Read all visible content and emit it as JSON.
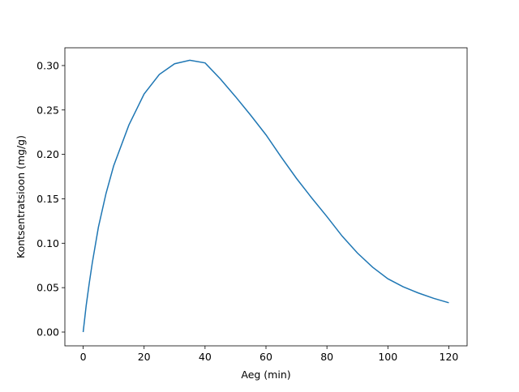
{
  "chart_data": {
    "type": "line",
    "x_label": "Aeg (min)",
    "y_label": "Kontsentratsioon (mg/g)",
    "x": [
      0,
      1,
      2,
      3,
      5,
      7.5,
      10,
      15,
      20,
      25,
      30,
      35,
      40,
      45,
      50,
      55,
      60,
      65,
      70,
      75,
      80,
      85,
      90,
      95,
      100,
      105,
      110,
      115,
      120
    ],
    "series": [
      {
        "name": "Kontsentratsioon",
        "color": "#1f77b4",
        "values": [
          0,
          0.03,
          0.055,
          0.078,
          0.118,
          0.156,
          0.187,
          0.233,
          0.268,
          0.29,
          0.302,
          0.306,
          0.303,
          0.285,
          0.265,
          0.244,
          0.222,
          0.197,
          0.173,
          0.151,
          0.13,
          0.108,
          0.089,
          0.073,
          0.06,
          0.051,
          0.044,
          0.038,
          0.033
        ]
      }
    ],
    "xlim": [
      -6,
      126
    ],
    "ylim": [
      -0.0155,
      0.32
    ],
    "xticks": [
      0,
      20,
      40,
      60,
      80,
      100,
      120
    ],
    "yticks": [
      {
        "value": 0,
        "label": "0.00"
      },
      0.05,
      {
        "value": 0.1,
        "label": "0.10"
      },
      0.15,
      {
        "value": 0.2,
        "label": "0.20"
      },
      0.25,
      {
        "value": 0.3,
        "label": "0.30"
      }
    ]
  }
}
